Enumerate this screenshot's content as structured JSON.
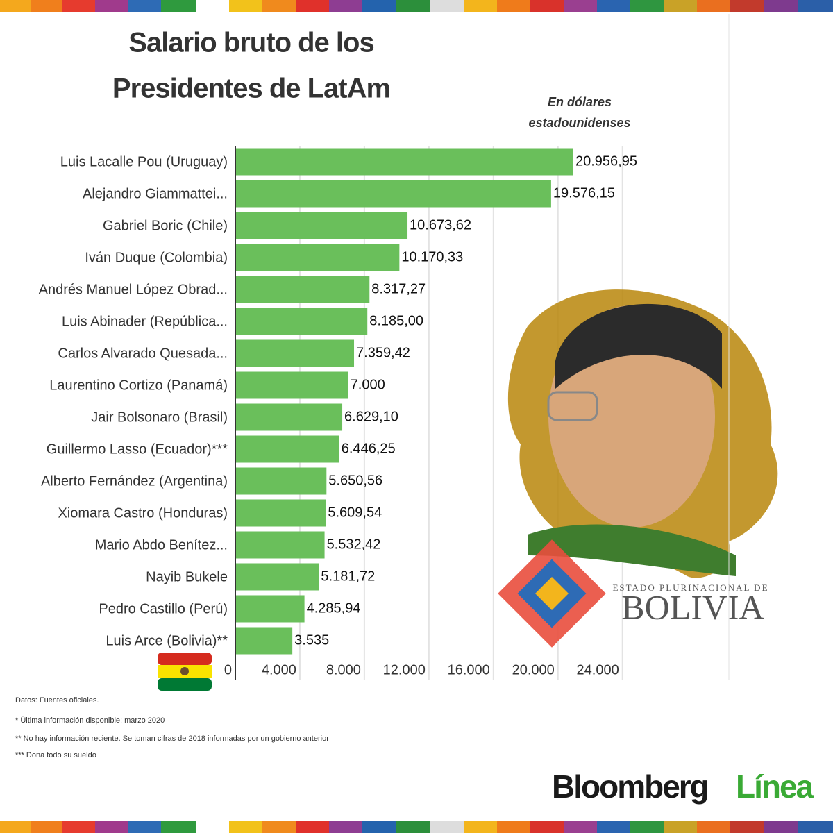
{
  "chart_data": {
    "type": "bar",
    "orientation": "horizontal",
    "title": [
      "Salario bruto de los",
      "Presidentes de LatAm"
    ],
    "subtitle": [
      "En dólares",
      "estadounidenses"
    ],
    "categories": [
      "Luis Lacalle Pou (Uruguay)",
      "Alejandro Giammattei...",
      "Gabriel Boric (Chile)",
      "Iván Duque (Colombia)",
      "Andrés Manuel López Obrad...",
      "Luis Abinader (República...",
      "Carlos Alvarado Quesada...",
      "Laurentino Cortizo (Panamá)",
      "Jair Bolsonaro (Brasil)",
      "Guillermo Lasso (Ecuador)***",
      "Alberto Fernández (Argentina)",
      "Xiomara Castro (Honduras)",
      "Mario Abdo Benítez...",
      "Nayib Bukele",
      "Pedro Castillo (Perú)",
      "Luis Arce (Bolivia)**"
    ],
    "values": [
      20956.95,
      19576.15,
      10673.62,
      10170.33,
      8317.27,
      8185.0,
      7359.42,
      7000,
      6629.1,
      6446.25,
      5650.56,
      5609.54,
      5532.42,
      5181.72,
      4285.94,
      3535
    ],
    "value_labels": [
      "20.956,95",
      "19.576,15",
      "10.673,62",
      "10.170,33",
      "8.317,27",
      "8.185,00",
      "7.359,42",
      "7.000",
      "6.629,10",
      "6.446,25",
      "5.650,56",
      "5.609,54",
      "5.532,42",
      "5.181,72",
      "4.285,94",
      "3.535"
    ],
    "color": "#6abf5b",
    "xlim": [
      0,
      28000
    ],
    "xticks": [
      0,
      {
        "value": 4000,
        "label": "4.000"
      },
      {
        "value": 8000,
        "label": "8.000"
      },
      {
        "value": 12000,
        "label": "12.000"
      },
      {
        "value": 16000,
        "label": "16.000"
      },
      {
        "value": 20000,
        "label": "20.000"
      },
      {
        "value": 24000,
        "label": "24.000"
      }
    ],
    "grid": true,
    "notes": [
      "Datos: Fuentes oficiales.",
      "* Última información disponible: marzo 2020",
      "** No hay información reciente. Se toman cifras de 2018 informadas por un gobierno anterior",
      "*** Dona todo su sueldo"
    ]
  },
  "branding": {
    "state_line": "ESTADO PLURINACIONAL DE",
    "state_name": "BOLIVIA",
    "publisher": "Bloomberg",
    "publisher_suffix": "Línea"
  }
}
